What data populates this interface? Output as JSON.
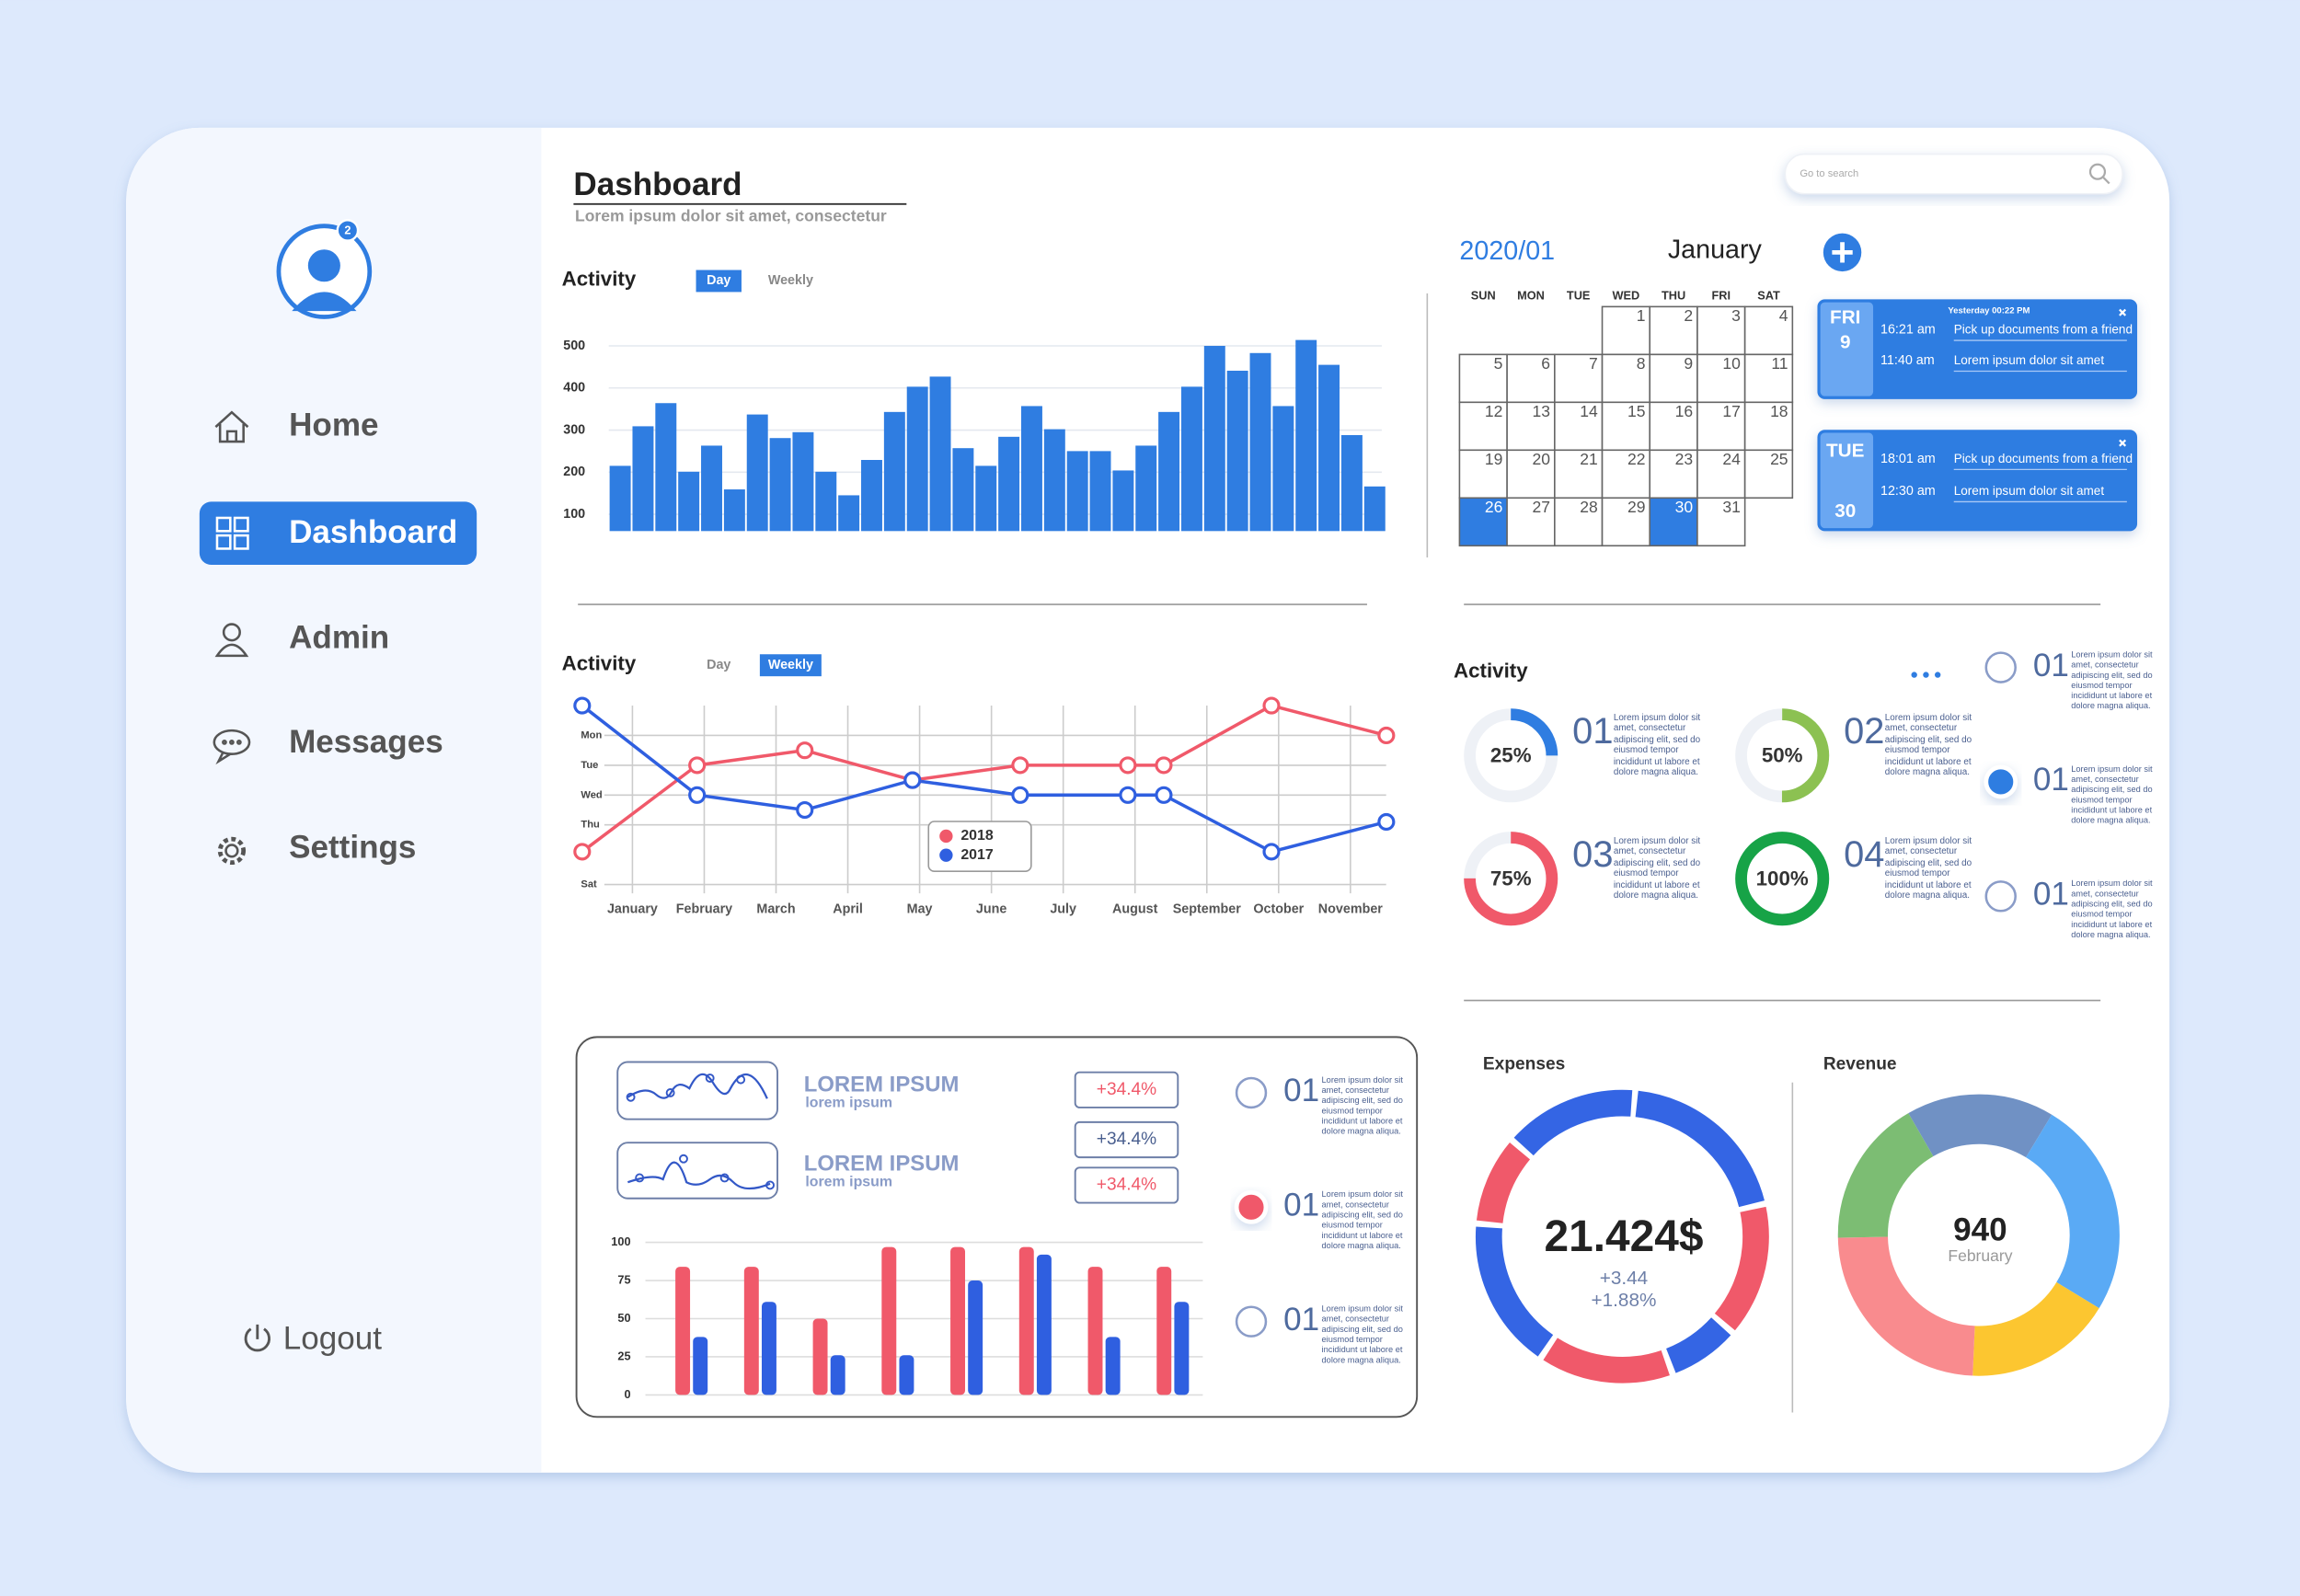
{
  "sidebar": {
    "badge": "2",
    "nav": [
      "Home",
      "Dashboard",
      "Admin",
      "Messages",
      "Settings"
    ],
    "active": 1,
    "logout": "Logout"
  },
  "header": {
    "title": "Dashboard",
    "subtitle": "Lorem ipsum dolor sit amet, consectetur",
    "search": "Go to search"
  },
  "calendar": {
    "year_month": "2020/01",
    "month": "January",
    "weekdays": [
      "SUN",
      "MON",
      "TUE",
      "WED",
      "THU",
      "FRI",
      "SAT"
    ],
    "first_weekday": 3,
    "days": [
      1,
      2,
      3,
      4,
      5,
      6,
      7,
      8,
      9,
      10,
      11,
      12,
      13,
      14,
      15,
      16,
      17,
      18,
      19,
      20,
      21,
      22,
      23,
      24,
      25,
      26,
      27,
      28,
      29,
      30,
      31
    ],
    "highlighted": [
      26,
      30
    ]
  },
  "events": [
    {
      "weekday": "FRI",
      "day": "9",
      "header": "Yesterday 00:22  PM",
      "items": [
        {
          "time": "16:21 am",
          "text": "Pick up documents from a friend"
        },
        {
          "time": "11:40 am",
          "text": "Lorem ipsum dolor sit amet"
        }
      ]
    },
    {
      "weekday": "TUE",
      "day": "30",
      "items": [
        {
          "time": "18:01 am",
          "text": "Pick up documents from a friend"
        },
        {
          "time": "12:30 am",
          "text": "Lorem ipsum dolor sit amet"
        }
      ]
    }
  ],
  "summary": {
    "rows": [
      {
        "title": "LOREM IPSUM",
        "subtitle": "lorem ipsum"
      },
      {
        "title": "LOREM IPSUM",
        "subtitle": "lorem ipsum"
      }
    ],
    "badges": [
      "+34.4%",
      "+34.4%",
      "+34.4%"
    ],
    "selected": 1,
    "list": [
      {
        "number": "01",
        "text": "Lorem ipsum dolor sit amet, consectetur adipiscing elit, sed do eiusmod tempor incididunt ut labore et dolore magna aliqua."
      },
      {
        "number": "01",
        "text": "Lorem ipsum dolor sit amet, consectetur adipiscing elit, sed do eiusmod tempor incididunt ut labore et dolore magna aliqua."
      },
      {
        "number": "01",
        "text": "Lorem ipsum dolor sit amet, consectetur adipiscing elit, sed do eiusmod tempor incididunt ut labore et dolore magna aliqua."
      }
    ]
  },
  "side_list": {
    "selected": 1,
    "items": [
      {
        "number": "01",
        "text": "Lorem ipsum dolor sit amet, consectetur adipiscing elit, sed do eiusmod tempor incididunt ut labore et dolore magna aliqua."
      },
      {
        "number": "01",
        "text": "Lorem ipsum dolor sit amet, consectetur adipiscing elit, sed do eiusmod tempor incididunt ut labore et dolore magna aliqua."
      },
      {
        "number": "01",
        "text": "Lorem ipsum dolor sit amet, consectetur adipiscing elit, sed do eiusmod tempor incididunt ut labore et dolore magna aliqua."
      }
    ]
  },
  "chart_data": [
    {
      "type": "bar",
      "title": "Activity",
      "tabs": [
        "Day",
        "Weekly"
      ],
      "active_tab": 0,
      "color": "#2f7de1",
      "values": [
        215,
        309,
        364,
        201,
        263,
        159,
        337,
        281,
        295,
        201,
        145,
        229,
        343,
        403,
        427,
        257,
        215,
        284,
        357,
        302,
        250,
        250,
        204,
        263,
        343,
        403,
        500,
        441,
        483,
        357,
        514,
        455,
        288,
        166
      ],
      "ylim": [
        60,
        520
      ],
      "yticks": [
        100,
        200,
        300,
        400,
        500
      ],
      "grid": true
    },
    {
      "type": "line",
      "title": "Activity",
      "tabs": [
        "Day",
        "Weekly"
      ],
      "active_tab": 1,
      "x": [
        0.3,
        1.9,
        3.4,
        4.9,
        6.4,
        7.9,
        8.4,
        9.9,
        11.5
      ],
      "xlim": [
        0.2,
        11.6
      ],
      "xticks": [
        {
          "value": 1,
          "label": "January"
        },
        {
          "value": 2,
          "label": "February"
        },
        {
          "value": 3,
          "label": "March"
        },
        {
          "value": 4,
          "label": "April"
        },
        {
          "value": 5,
          "label": "May"
        },
        {
          "value": 6,
          "label": "June"
        },
        {
          "value": 7,
          "label": "July"
        },
        {
          "value": 8,
          "label": "August"
        },
        {
          "value": 9,
          "label": "September"
        },
        {
          "value": 10,
          "label": "October"
        },
        {
          "value": 11,
          "label": "November"
        }
      ],
      "ylim": [
        6,
        0
      ],
      "yticks": [
        {
          "value": 1,
          "label": "Mon"
        },
        {
          "value": 2,
          "label": "Tue"
        },
        {
          "value": 3,
          "label": "Wed"
        },
        {
          "value": 4,
          "label": "Thu"
        },
        {
          "value": 6,
          "label": "Sat"
        }
      ],
      "series": [
        {
          "name": "2018",
          "color": "#f0596a",
          "values": [
            4.9,
            2,
            1.5,
            2.5,
            2,
            2,
            2,
            0,
            1
          ]
        },
        {
          "name": "2017",
          "color": "#2f5fe0",
          "values": [
            0,
            3,
            3.5,
            2.5,
            3,
            3,
            3,
            4.9,
            3.9
          ]
        }
      ],
      "grid": true
    },
    {
      "type": "grouped-bar",
      "ylim": [
        0,
        100
      ],
      "yticks": [
        0,
        25,
        50,
        75,
        100
      ],
      "grid": true,
      "series": [
        {
          "color": "#f0596a",
          "values": [
            84,
            84,
            50,
            97,
            97,
            97,
            84,
            84
          ]
        },
        {
          "color": "#2f5fe0",
          "values": [
            38,
            61,
            26,
            26,
            75,
            92,
            38,
            61
          ]
        }
      ]
    },
    {
      "type": "progress-donut",
      "title": "Activity",
      "values": [
        25,
        50,
        75,
        100
      ],
      "value_labels": [
        "25%",
        "50%",
        "75%",
        "100%"
      ],
      "colors": [
        "#2f7de1",
        "#8cc152",
        "#f0596a",
        "#17a347"
      ],
      "numbers": [
        "01",
        "02",
        "03",
        "04"
      ],
      "texts": [
        "Lorem ipsum dolor sit amet, consectetur adipiscing elit, sed do eiusmod tempor incididunt ut labore et dolore magna aliqua.",
        "Lorem ipsum dolor sit amet, consectetur adipiscing elit, sed do eiusmod tempor incididunt ut labore et dolore magna aliqua.",
        "Lorem ipsum dolor sit amet, consectetur adipiscing elit, sed do eiusmod tempor incididunt ut labore et dolore magna aliqua.",
        "Lorem ipsum dolor sit amet, consectetur adipiscing elit, sed do eiusmod tempor incididunt ut labore et dolore magna aliqua."
      ]
    },
    {
      "type": "donut",
      "title": "Expenses",
      "values": [
        20,
        15,
        8,
        15,
        17,
        10,
        15
      ],
      "colors": [
        "#3465e4",
        "#f0596a",
        "#3465e4",
        "#f0596a",
        "#3465e4",
        "#f0596a",
        "#3465e4"
      ],
      "center_text": "21.424$",
      "notes": [
        "+3.44",
        "+1.88%"
      ]
    },
    {
      "type": "donut",
      "title": "Revenue",
      "values": [
        17,
        25,
        17,
        24,
        17
      ],
      "colors": [
        "#7091c4",
        "#5aaaf5",
        "#fcc630",
        "#f98b8e",
        "#7cbd73"
      ],
      "center_text": "940",
      "center_subtitle": "February"
    }
  ]
}
